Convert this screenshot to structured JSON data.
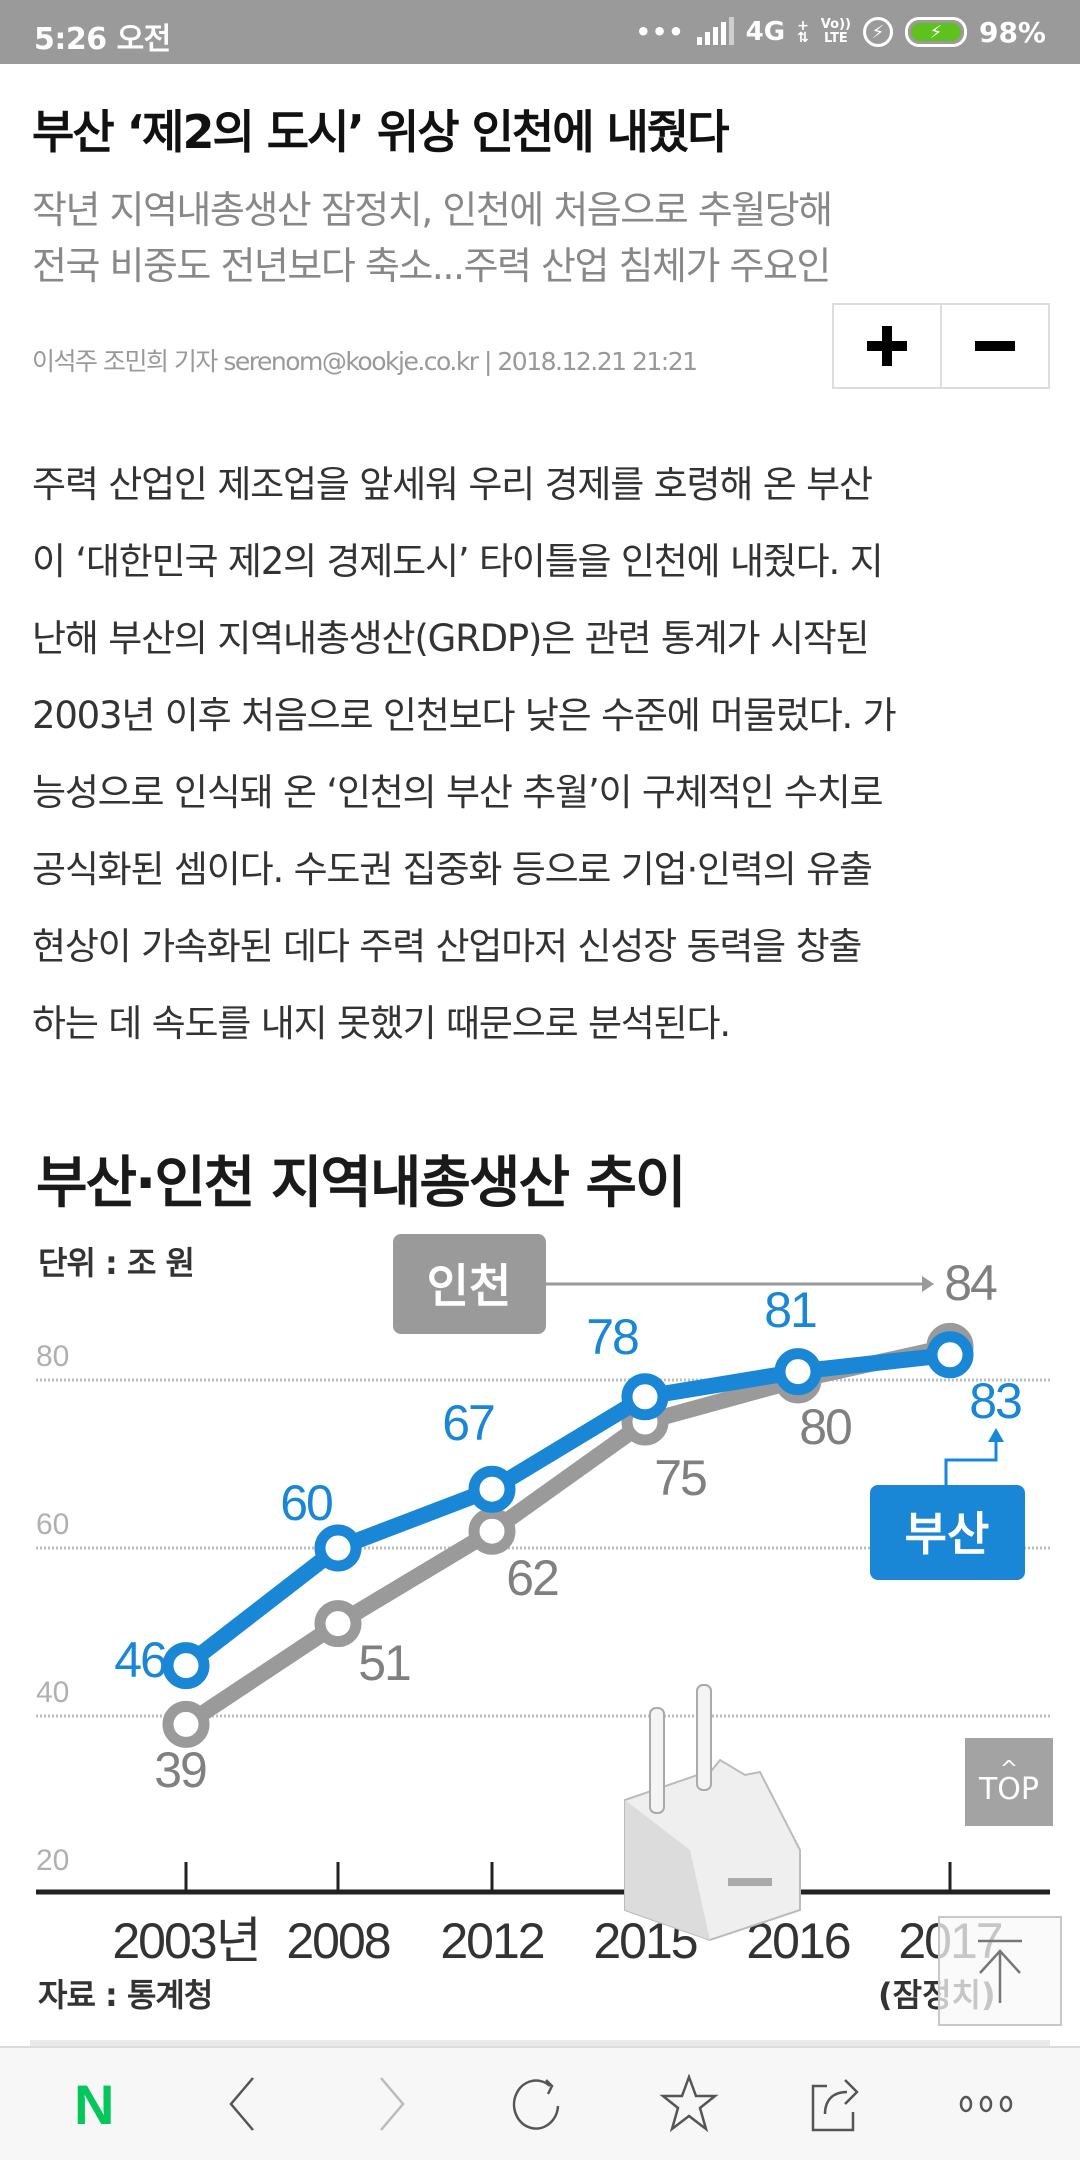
{
  "status_bar": {
    "time": "5:26 오전",
    "dots": "•••",
    "network": "4G",
    "volte_top": "Vo))",
    "volte_bottom": "LTE",
    "battery_percent": "98%",
    "battery_color": "#5ec21e"
  },
  "article": {
    "headline": "부산 ‘제2의 도시’ 위상 인천에 내줬다",
    "subheadlines": [
      "작년 지역내총생산 잠정치, 인천에 처음으로 추월당해",
      "전국 비중도 전년보다 축소...주력 산업 침체가 주요인"
    ],
    "byline": "이석주 조민희 기자 serenom@kookje.co.kr | 2018.12.21 21:21",
    "font_controls": {
      "increase": "+",
      "decrease": "−"
    },
    "body_lines": [
      "주력 산업인 제조업을 앞세워 우리 경제를 호령해 온 부산",
      "이 ‘대한민국 제2의 경제도시’ 타이틀을 인천에 내줬다. 지",
      "난해 부산의 지역내총생산(GRDP)은 관련 통계가 시작된",
      "2003년 이후 처음으로 인천보다 낮은 수준에 머물렀다. 가",
      "능성으로 인식돼 온 ‘인천의 부산 추월’이 구체적인 수치로",
      "공식화된 셈이다. 수도권 집중화 등으로 기업·인력의 유출",
      "현상이 가속화된 데다 주력 산업마저 신성장 동력을 창출",
      "하는 데 속도를 내지 못했기 때문으로 분석된다."
    ]
  },
  "chart_data": {
    "type": "line",
    "title": "부산·인천 지역내총생산 추이",
    "unit": "단위 : 조 원",
    "source": "자료 : 통계청",
    "note": "(잠정치)",
    "categories": [
      "2003년",
      "2008",
      "2012",
      "2015",
      "2016",
      "2017"
    ],
    "series": [
      {
        "name": "부산",
        "color": "#1a87d6",
        "values": [
          46,
          60,
          67,
          78,
          81,
          83
        ]
      },
      {
        "name": "인천",
        "color": "#9a9a9a",
        "values": [
          39,
          51,
          62,
          75,
          80,
          84
        ]
      }
    ],
    "yticks": [
      20,
      40,
      60,
      80
    ],
    "ylim": [
      20,
      90
    ],
    "grid": true,
    "legend": "inline labels (인천 box top, 부산 box right)"
  },
  "floating": {
    "top_button_caret": "^",
    "top_button_label": "TOP"
  },
  "bottom_nav": {
    "items": [
      "naver-home",
      "back",
      "forward",
      "reload",
      "bookmark",
      "share",
      "more"
    ],
    "home_label": "N",
    "home_color": "#03c75a"
  }
}
